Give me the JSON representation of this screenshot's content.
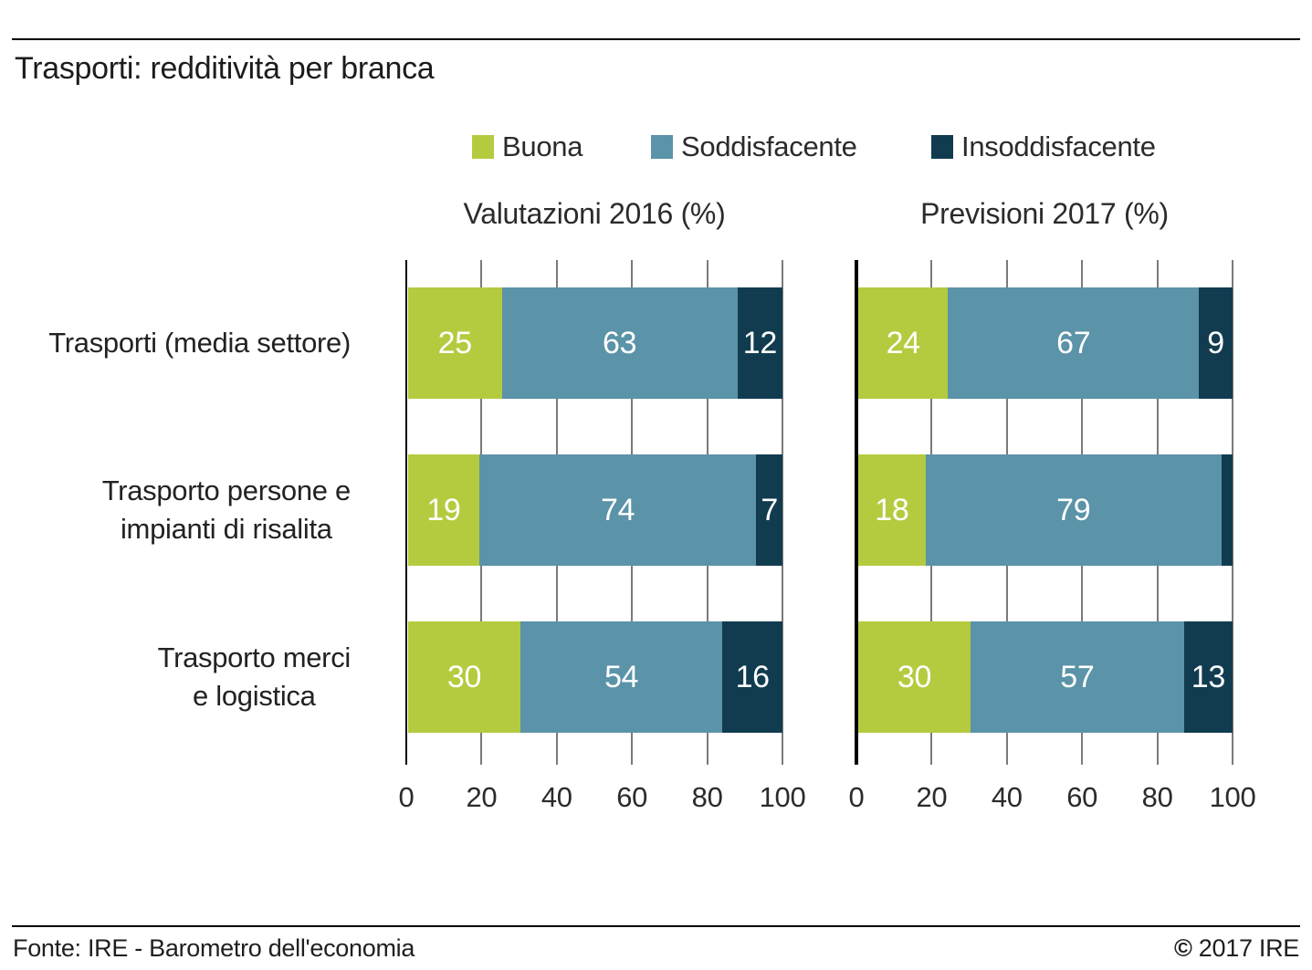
{
  "title": "Trasporti: redditività per branca",
  "legend": {
    "items": [
      {
        "label": "Buona",
        "color": "#b5cb3f"
      },
      {
        "label": "Soddisfacente",
        "color": "#5b93a8"
      },
      {
        "label": "Insoddisfacente",
        "color": "#113c50"
      }
    ]
  },
  "footer": {
    "source": "Fonte: IRE - Barometro dell'economia",
    "copyright_symbol": "©",
    "copyright_text": " 2017 IRE"
  },
  "colors": {
    "buona": "#b5cb3f",
    "soddisfacente": "#5b93a8",
    "insoddisfacente": "#113c50",
    "gridline": "#7a7a7a",
    "axis": "#000000",
    "value_label": "#ffffff",
    "background": "#ffffff"
  },
  "chart_data": {
    "type": "bar",
    "orientation": "horizontal-stacked",
    "grid": true,
    "legend_position": "top",
    "xlim": [
      0,
      100
    ],
    "xticks": [
      0,
      20,
      40,
      60,
      80,
      100
    ],
    "value_label_min_to_show": 6,
    "categories": [
      "Trasporti (media settore)",
      "Trasporto persone e\nimpianti di risalita",
      "Trasporto merci\ne logistica"
    ],
    "panels": [
      {
        "subtitle": "Valutazioni 2016 (%)",
        "series": [
          {
            "name": "Buona",
            "values": [
              25,
              19,
              30
            ]
          },
          {
            "name": "Soddisfacente",
            "values": [
              63,
              74,
              54
            ]
          },
          {
            "name": "Insoddisfacente",
            "values": [
              12,
              7,
              16
            ]
          }
        ]
      },
      {
        "subtitle": "Previsioni 2017 (%)",
        "series": [
          {
            "name": "Buona",
            "values": [
              24,
              18,
              30
            ]
          },
          {
            "name": "Soddisfacente",
            "values": [
              67,
              79,
              57
            ]
          },
          {
            "name": "Insoddisfacente",
            "values": [
              9,
              3,
              13
            ]
          }
        ]
      }
    ]
  }
}
